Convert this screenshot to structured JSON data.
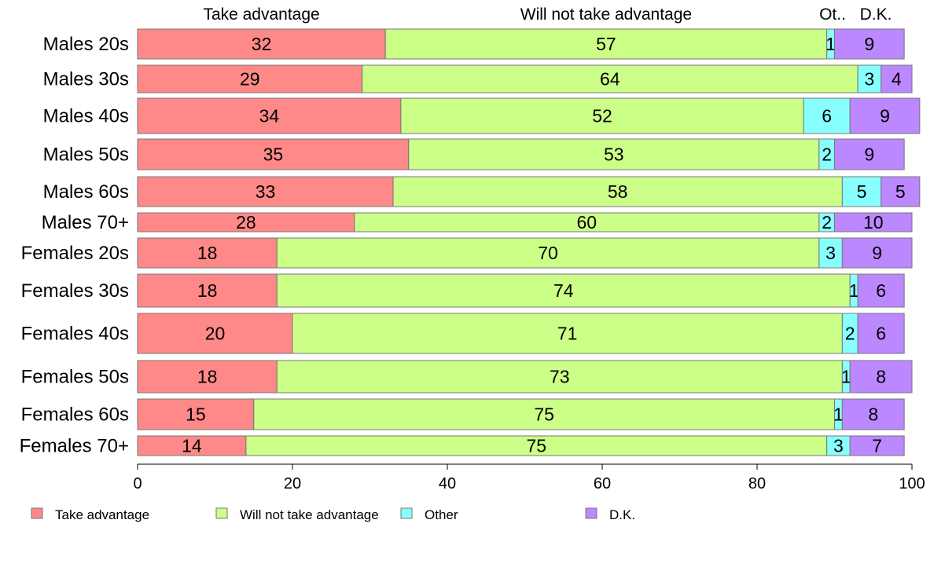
{
  "chart_data": {
    "type": "bar",
    "orientation": "horizontal",
    "stacked": true,
    "categories": [
      "Males 20s",
      "Males 30s",
      "Males 40s",
      "Males 50s",
      "Males 60s",
      "Males 70+",
      "Females 20s",
      "Females 30s",
      "Females 40s",
      "Females 50s",
      "Females 60s",
      "Females 70+"
    ],
    "series": [
      {
        "name": "Take advantage",
        "color": "#ff8888",
        "values": [
          32,
          29,
          34,
          35,
          33,
          28,
          18,
          18,
          20,
          18,
          15,
          14
        ]
      },
      {
        "name": "Will not take advantage",
        "color": "#ccff88",
        "values": [
          57,
          64,
          52,
          53,
          58,
          60,
          70,
          74,
          71,
          73,
          75,
          75
        ]
      },
      {
        "name": "Other",
        "color": "#88ffff",
        "values": [
          1,
          3,
          6,
          2,
          5,
          2,
          3,
          1,
          2,
          1,
          1,
          3
        ]
      },
      {
        "name": "D.K.",
        "color": "#bb88ff",
        "values": [
          9,
          4,
          9,
          9,
          5,
          10,
          9,
          6,
          6,
          8,
          8,
          7
        ]
      }
    ],
    "top_labels": [
      "Take advantage",
      "Will not take advantage",
      "Ot..",
      "D.K."
    ],
    "xticks": [
      "0",
      "20",
      "40",
      "60",
      "80",
      "100"
    ],
    "xlim": [
      0,
      100
    ],
    "title": "",
    "xlabel": "",
    "ylabel": "",
    "grid": false,
    "legend": {
      "placement": "bottom",
      "labels": [
        "Take advantage",
        "Will not take advantage",
        "Other",
        "D.K."
      ]
    }
  }
}
